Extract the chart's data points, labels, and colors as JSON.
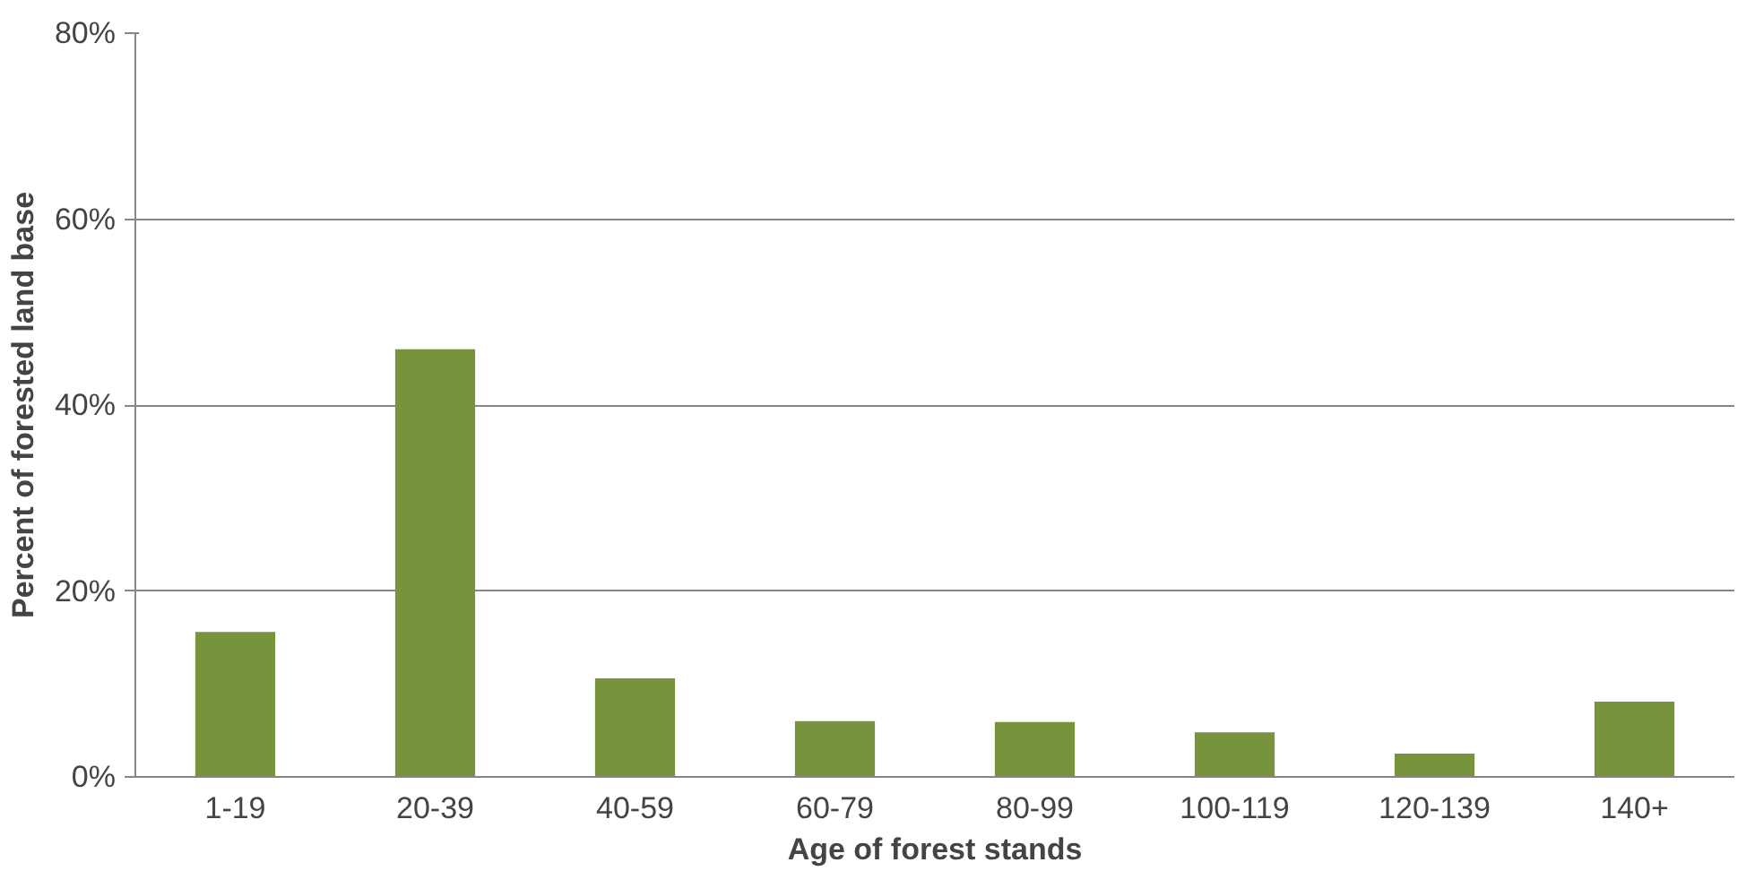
{
  "chart_data": {
    "type": "bar",
    "xlabel": "Age of forest stands",
    "ylabel": "Percent of forested land base",
    "categories": [
      "1-19",
      "20-39",
      "40-59",
      "60-79",
      "80-99",
      "100-119",
      "120-139",
      "140+"
    ],
    "values": [
      15.6,
      46,
      10.6,
      6,
      5.9,
      4.8,
      2.5,
      8.1
    ],
    "color": "#77933c",
    "ylim": [
      0,
      80
    ],
    "yticks": [
      {
        "value": 0,
        "label": "0%"
      },
      {
        "value": 20,
        "label": "20%"
      },
      {
        "value": 40,
        "label": "40%"
      },
      {
        "value": 60,
        "label": "60%"
      },
      {
        "value": 80,
        "label": "80%"
      }
    ],
    "grid": "y"
  }
}
